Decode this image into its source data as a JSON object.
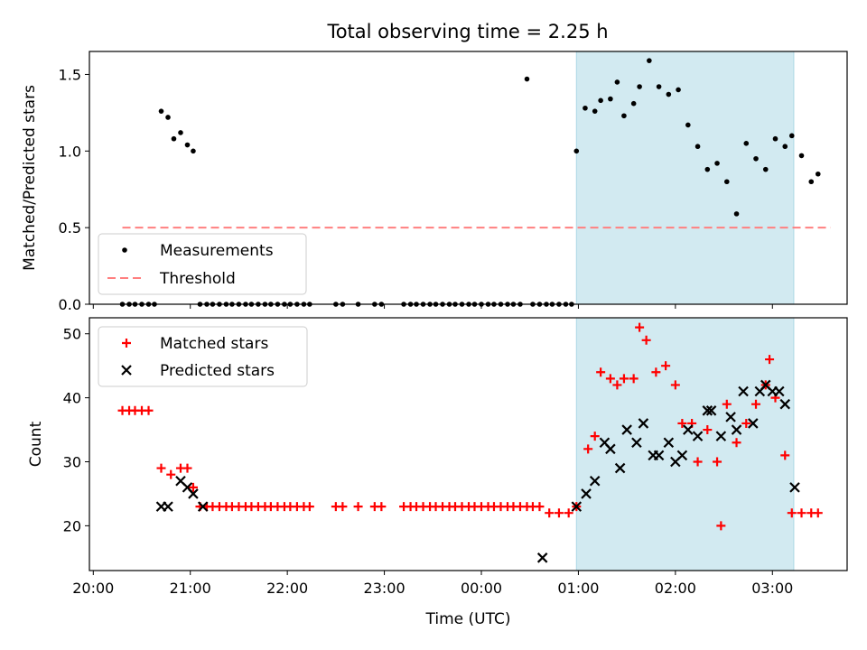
{
  "figure_title": "Total observing time = 2.25 h",
  "colors": {
    "measurement": "#000000",
    "threshold": "#ff7f7f",
    "matched": "#ff0000",
    "predicted": "#000000",
    "shade": "#add8e6"
  },
  "chart_data": [
    {
      "type": "scatter",
      "ylabel": "Matched/Predicted stars",
      "xlabel": "",
      "ylim": [
        0,
        1.65
      ],
      "xlim_hours": [
        19.96,
        27.77
      ],
      "yticks": [
        0.0,
        0.5,
        1.0,
        1.5
      ],
      "ytick_labels": [
        "0.0",
        "0.5",
        "1.0",
        "1.5"
      ],
      "grid": false,
      "legend": {
        "placement": "lower-left",
        "entries": [
          "Measurements",
          "Threshold"
        ]
      },
      "threshold": {
        "value": 0.5,
        "x_from": 20.3,
        "x_to": 27.6
      },
      "shaded_span": {
        "from": 24.98,
        "to": 27.22
      },
      "series": [
        {
          "name": "Measurements",
          "x": [
            20.3,
            20.37,
            20.43,
            20.5,
            20.57,
            20.63,
            20.7,
            20.77,
            20.83,
            20.9,
            20.97,
            21.03,
            21.1,
            21.17,
            21.23,
            21.3,
            21.37,
            21.43,
            21.5,
            21.57,
            21.63,
            21.7,
            21.77,
            21.83,
            21.9,
            21.97,
            22.03,
            22.1,
            22.17,
            22.23,
            22.5,
            22.57,
            22.73,
            22.9,
            22.97,
            23.2,
            23.27,
            23.33,
            23.4,
            23.47,
            23.53,
            23.6,
            23.67,
            23.73,
            23.8,
            23.87,
            23.93,
            24.0,
            24.07,
            24.13,
            24.2,
            24.27,
            24.33,
            24.4,
            24.47,
            24.53,
            24.6,
            24.67,
            24.73,
            24.8,
            24.87,
            24.93,
            24.98,
            25.07,
            25.17,
            25.23,
            25.33,
            25.4,
            25.47,
            25.57,
            25.63,
            25.73,
            25.83,
            25.93,
            26.03,
            26.13,
            26.23,
            26.33,
            26.43,
            26.53,
            26.63,
            26.73,
            26.83,
            26.93,
            27.03,
            27.13,
            27.2,
            27.3,
            27.4,
            27.47
          ],
          "y": [
            0,
            0,
            0,
            0,
            0,
            0,
            1.26,
            1.22,
            1.08,
            1.12,
            1.04,
            1.0,
            0,
            0,
            0,
            0,
            0,
            0,
            0,
            0,
            0,
            0,
            0,
            0,
            0,
            0,
            0,
            0,
            0,
            0,
            0,
            0,
            0,
            0,
            0,
            0,
            0,
            0,
            0,
            0,
            0,
            0,
            0,
            0,
            0,
            0,
            0,
            0,
            0,
            0,
            0,
            0,
            0,
            0,
            1.47,
            0,
            0,
            0,
            0,
            0,
            0,
            0,
            1.0,
            1.28,
            1.26,
            1.33,
            1.34,
            1.45,
            1.23,
            1.31,
            1.42,
            1.59,
            1.42,
            1.37,
            1.4,
            1.17,
            1.03,
            0.88,
            0.92,
            0.8,
            0.59,
            1.05,
            0.95,
            0.88,
            1.08,
            1.03,
            1.1,
            0.97,
            0.8,
            0.85
          ]
        }
      ]
    },
    {
      "type": "scatter",
      "ylabel": "Count",
      "xlabel": "Time (UTC)",
      "ylim": [
        13,
        52.5
      ],
      "xlim_hours": [
        19.96,
        27.77
      ],
      "yticks": [
        20,
        30,
        40,
        50
      ],
      "ytick_labels": [
        "20",
        "30",
        "40",
        "50"
      ],
      "xticks_hours": [
        20,
        21,
        22,
        23,
        24,
        25,
        26,
        27
      ],
      "xtick_labels": [
        "20:00",
        "21:00",
        "22:00",
        "23:00",
        "00:00",
        "01:00",
        "02:00",
        "03:00"
      ],
      "grid": false,
      "legend": {
        "placement": "top-left",
        "entries": [
          "Matched stars",
          "Predicted stars"
        ]
      },
      "shaded_span": {
        "from": 24.98,
        "to": 27.22
      },
      "series": [
        {
          "name": "Matched stars",
          "x": [
            20.3,
            20.37,
            20.43,
            20.5,
            20.57,
            20.7,
            20.8,
            20.9,
            20.97,
            21.03,
            21.1,
            21.17,
            21.23,
            21.3,
            21.37,
            21.43,
            21.5,
            21.57,
            21.63,
            21.7,
            21.77,
            21.83,
            21.9,
            21.97,
            22.03,
            22.1,
            22.17,
            22.23,
            22.5,
            22.57,
            22.73,
            22.9,
            22.97,
            23.2,
            23.27,
            23.33,
            23.4,
            23.47,
            23.53,
            23.6,
            23.67,
            23.73,
            23.8,
            23.87,
            23.93,
            24.0,
            24.07,
            24.13,
            24.2,
            24.27,
            24.33,
            24.4,
            24.47,
            24.53,
            24.6,
            24.7,
            24.8,
            24.9,
            24.98,
            25.1,
            25.17,
            25.23,
            25.33,
            25.4,
            25.47,
            25.57,
            25.63,
            25.7,
            25.8,
            25.9,
            26.0,
            26.07,
            26.17,
            26.23,
            26.33,
            26.43,
            26.47,
            26.53,
            26.63,
            26.73,
            26.83,
            26.93,
            26.97,
            27.03,
            27.13,
            27.2,
            27.3,
            27.4,
            27.47
          ],
          "y": [
            38,
            38,
            38,
            38,
            38,
            29,
            28,
            29,
            29,
            26,
            23,
            23,
            23,
            23,
            23,
            23,
            23,
            23,
            23,
            23,
            23,
            23,
            23,
            23,
            23,
            23,
            23,
            23,
            23,
            23,
            23,
            23,
            23,
            23,
            23,
            23,
            23,
            23,
            23,
            23,
            23,
            23,
            23,
            23,
            23,
            23,
            23,
            23,
            23,
            23,
            23,
            23,
            23,
            23,
            23,
            22,
            22,
            22,
            23,
            32,
            34,
            44,
            43,
            42,
            43,
            43,
            51,
            49,
            44,
            45,
            42,
            36,
            36,
            30,
            35,
            30,
            20,
            39,
            33,
            36,
            39,
            42,
            46,
            40,
            31,
            22,
            22,
            22,
            22
          ]
        },
        {
          "name": "Predicted stars",
          "x": [
            20.7,
            20.77,
            20.9,
            20.97,
            21.03,
            21.13,
            24.63,
            24.98,
            25.08,
            25.17,
            25.27,
            25.33,
            25.43,
            25.5,
            25.6,
            25.67,
            25.77,
            25.83,
            25.93,
            26.0,
            26.07,
            26.13,
            26.23,
            26.33,
            26.37,
            26.47,
            26.57,
            26.63,
            26.7,
            26.8,
            26.87,
            26.93,
            27.0,
            27.07,
            27.13,
            27.23
          ],
          "y": [
            23,
            23,
            27,
            26,
            25,
            23,
            15,
            23,
            25,
            27,
            33,
            32,
            29,
            35,
            33,
            36,
            31,
            31,
            33,
            30,
            31,
            35,
            34,
            38,
            38,
            34,
            37,
            35,
            41,
            36,
            41,
            42,
            41,
            41,
            39,
            26
          ]
        }
      ]
    }
  ]
}
